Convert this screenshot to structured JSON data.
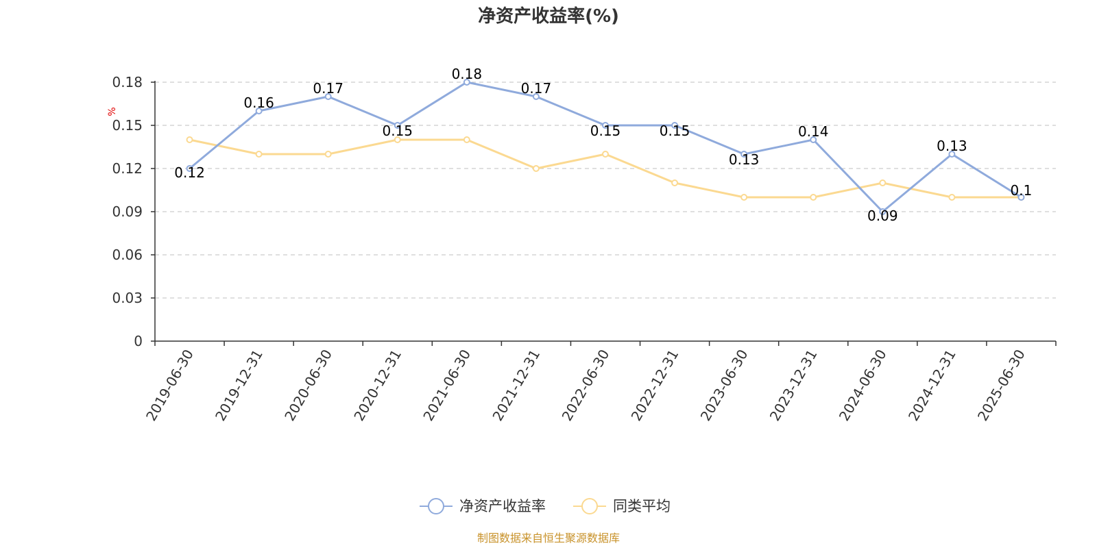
{
  "colors": {
    "series_1": "#8faadc",
    "series_2": "#fbd991",
    "grid": "#cccccc",
    "axis": "#333333",
    "unit": "#e00000",
    "source": "#c8922a"
  },
  "chart_data": {
    "type": "line",
    "title": "净资产收益率(%)",
    "ylabel": "%",
    "xlabel": "",
    "ylim": [
      0,
      0.18
    ],
    "yticks": [
      "0",
      "0.03",
      "0.06",
      "0.09",
      "0.12",
      "0.15",
      "0.18"
    ],
    "ytick_values": [
      0,
      0.03,
      0.06,
      0.09,
      0.12,
      0.15,
      0.18
    ],
    "grid": true,
    "legend_position": "bottom-center",
    "categories": [
      "2019-06-30",
      "2019-12-31",
      "2020-06-30",
      "2020-12-31",
      "2021-06-30",
      "2021-12-31",
      "2022-06-30",
      "2022-12-31",
      "2023-06-30",
      "2023-12-31",
      "2024-06-30",
      "2024-12-31",
      "2025-06-30"
    ],
    "series": [
      {
        "name": "净资产收益率",
        "values": [
          0.12,
          0.16,
          0.17,
          0.15,
          0.18,
          0.17,
          0.15,
          0.15,
          0.13,
          0.14,
          0.09,
          0.13,
          0.1
        ],
        "labels": [
          "0.12",
          "0.16",
          "0.17",
          "0.15",
          "0.18",
          "0.17",
          "0.15",
          "0.15",
          "0.13",
          "0.14",
          "0.09",
          "0.13",
          "0.1"
        ]
      },
      {
        "name": "同类平均",
        "values": [
          0.14,
          0.13,
          0.13,
          0.14,
          0.14,
          0.12,
          0.13,
          0.11,
          0.1,
          0.1,
          0.11,
          0.1,
          0.1
        ]
      }
    ]
  },
  "source_note": "制图数据来自恒生聚源数据库"
}
